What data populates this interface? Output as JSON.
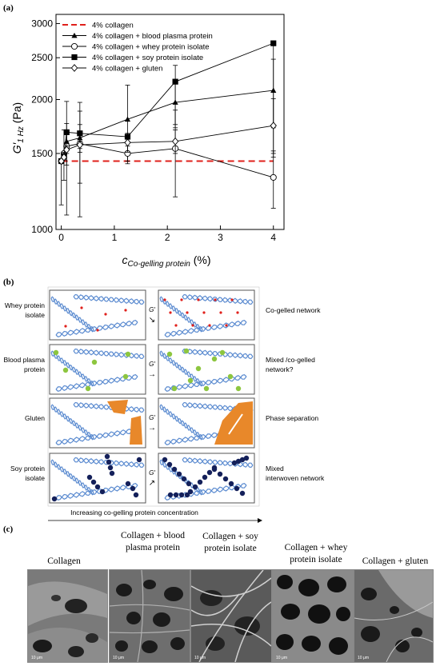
{
  "panel_a": {
    "letter": "(a)",
    "chart_data": {
      "type": "line",
      "ylabel_main": "G′",
      "ylabel_sub": "1 Hz",
      "ylabel_unit": "(Pa)",
      "xlabel_main": "c",
      "xlabel_sub": "Co-gelling protein",
      "xlabel_unit": "(%)",
      "xlim": [
        -0.1,
        4.2
      ],
      "ylim": [
        1000,
        3150
      ],
      "yscale": "log",
      "xticks": [
        "0",
        "1",
        "2",
        "3",
        "4"
      ],
      "yticks": [
        "1000",
        "1500",
        "2000",
        "2500",
        "3000"
      ],
      "legend_position": "top-left",
      "series": [
        {
          "name": "4% collagen",
          "style": "dashed-red",
          "x": [
            0,
            4
          ],
          "y": [
            1440,
            1440
          ]
        },
        {
          "name": "4% collagen + blood plasma protein",
          "marker": "filled-triangle",
          "x": [
            0,
            0.1,
            0.35,
            1.25,
            2.15,
            4
          ],
          "y": [
            1440,
            1600,
            1630,
            1800,
            1970,
            2100
          ],
          "err": [
            [
              0,
              0
            ],
            [
              60,
              60
            ],
            [
              120,
              120
            ],
            [
              380,
              360
            ],
            [
              250,
              250
            ],
            [
              380,
              380
            ]
          ]
        },
        {
          "name": "4% collagen + whey protein isolate",
          "marker": "open-circle",
          "x": [
            0,
            0.05,
            0.1,
            0.35,
            1.25,
            2.15,
            4
          ],
          "y": [
            1440,
            1500,
            1560,
            1580,
            1500,
            1540,
            1320
          ],
          "err": [
            [
              300,
              0
            ],
            [
              200,
              200
            ],
            [
              150,
              200
            ],
            [
              300,
              300
            ],
            [
              60,
              60
            ],
            [
              350,
              350
            ],
            [
              200,
              200
            ]
          ]
        },
        {
          "name": "4% collagen + soy protein isolate",
          "marker": "filled-square",
          "x": [
            0,
            0.05,
            0.1,
            0.35,
            1.25,
            2.15,
            4
          ],
          "y": [
            1440,
            1480,
            1680,
            1670,
            1640,
            2200,
            2700
          ],
          "err": [
            [
              0,
              0
            ],
            [
              30,
              30
            ],
            [
              600,
              300
            ],
            [
              600,
              300
            ],
            [
              0,
              0
            ],
            [
              450,
              200
            ],
            [
              1200,
              0
            ]
          ]
        },
        {
          "name": "4% collagen + gluten",
          "marker": "open-diamond",
          "x": [
            0,
            0.05,
            0.1,
            0.35,
            1.25,
            2.15,
            4
          ],
          "y": [
            1440,
            1470,
            1530,
            1570,
            1590,
            1600,
            1740
          ],
          "err": [
            [
              0,
              0
            ],
            [
              20,
              20
            ],
            [
              30,
              30
            ],
            [
              30,
              30
            ],
            [
              80,
              80
            ],
            [
              100,
              100
            ],
            [
              270,
              270
            ]
          ]
        }
      ]
    }
  },
  "panel_b": {
    "letter": "(b)",
    "rows": [
      {
        "left_label": "Whey protein isolate",
        "arrow": "↘",
        "right_label": "Co-gelled network"
      },
      {
        "left_label": "Blood plasma protein",
        "arrow": "→",
        "right_label": "Mixed /co-gelled network?"
      },
      {
        "left_label": "Gluten",
        "arrow": "→",
        "right_label": "Phase separation"
      },
      {
        "left_label": "Soy protein isolate",
        "arrow": "↗",
        "right_label": "Mixed  interwoven network"
      }
    ],
    "g_prime": "G′",
    "bottom_label": "Increasing co-gelling protein concentration",
    "colors": {
      "helix": "#5b8bd0",
      "whey": "#e0201b",
      "plasma": "#8dc63f",
      "gluten": "#e8882a",
      "soy": "#14205a"
    }
  },
  "panel_c": {
    "letter": "(c)",
    "captions": [
      "Collagen",
      "Collagen + blood plasma protein",
      "Collagen + soy protein isolate",
      "Collagen + whey protein isolate",
      "Collagen + gluten"
    ],
    "scale_label": "10 μm"
  }
}
